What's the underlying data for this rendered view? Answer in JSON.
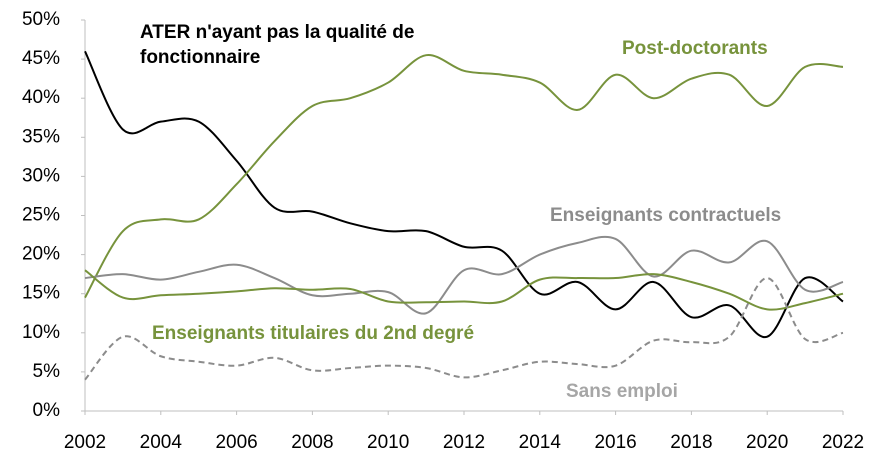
{
  "chart_data": {
    "type": "line",
    "x": [
      2002,
      2003,
      2004,
      2005,
      2006,
      2007,
      2008,
      2009,
      2010,
      2011,
      2012,
      2013,
      2014,
      2015,
      2016,
      2017,
      2018,
      2019,
      2020,
      2021,
      2022
    ],
    "xlim": [
      2002,
      2022
    ],
    "xticks": [
      2002,
      2004,
      2006,
      2008,
      2010,
      2012,
      2014,
      2016,
      2018,
      2020,
      2022
    ],
    "ylim": [
      0,
      50
    ],
    "yticks": [
      {
        "value": 0,
        "label": "0%"
      },
      {
        "value": 5,
        "label": "5%"
      },
      {
        "value": 10,
        "label": "10%"
      },
      {
        "value": 15,
        "label": "15%"
      },
      {
        "value": 20,
        "label": "20%"
      },
      {
        "value": 25,
        "label": "25%"
      },
      {
        "value": 30,
        "label": "30%"
      },
      {
        "value": 35,
        "label": "35%"
      },
      {
        "value": 40,
        "label": "40%"
      },
      {
        "value": 45,
        "label": "45%"
      },
      {
        "value": 50,
        "label": "50%"
      }
    ],
    "series": [
      {
        "name": "ATER n'ayant pas la qualité de fonctionnaire",
        "color": "#000000",
        "values": [
          46,
          36,
          37,
          37,
          32,
          26,
          25.5,
          24,
          23,
          23,
          21,
          20.5,
          15,
          16.5,
          13,
          16.5,
          12,
          13.5,
          9.5,
          17,
          14
        ]
      },
      {
        "name": "Post-doctorants",
        "color": "#77933c",
        "values": [
          14.5,
          23,
          24.5,
          24.5,
          29,
          34.5,
          39,
          40,
          42,
          45.5,
          43.5,
          43,
          42,
          38.5,
          43,
          40,
          42.5,
          43,
          39,
          44,
          44
        ]
      },
      {
        "name": "Enseignants contractuels",
        "color": "#8c8c8c",
        "values": [
          17,
          17.5,
          16.8,
          17.8,
          18.7,
          17,
          14.8,
          15,
          15.2,
          12.5,
          18,
          17.5,
          20,
          21.5,
          22,
          17.2,
          20.5,
          19,
          21.7,
          15.5,
          16.5
        ]
      },
      {
        "name": "Enseignants titulaires du 2nd degré",
        "color": "#77933c",
        "values": [
          18,
          14.5,
          14.8,
          15,
          15.3,
          15.7,
          15.5,
          15.6,
          14,
          13.9,
          14,
          14,
          16.8,
          17,
          17,
          17.5,
          16.5,
          15,
          13,
          13.8,
          15
        ]
      },
      {
        "name": "Sans emploi",
        "color": "#a6a6a6",
        "dashed": true,
        "values": [
          4,
          9.5,
          7,
          6.3,
          5.8,
          6.8,
          5.2,
          5.5,
          5.8,
          5.5,
          4.3,
          5.2,
          6.3,
          6,
          5.8,
          9,
          8.8,
          9.5,
          17,
          9.2,
          10
        ]
      }
    ]
  }
}
